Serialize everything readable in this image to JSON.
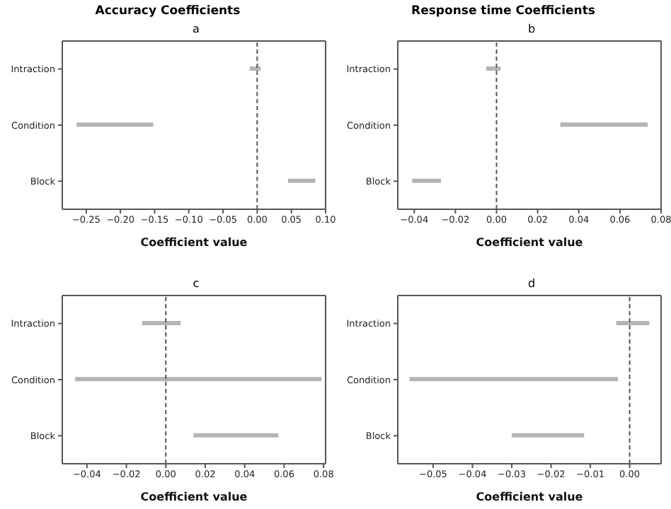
{
  "chart_data": [
    {
      "type": "bar",
      "orientation": "horizontal",
      "title": "Accuracy  Coefficients",
      "subtitle": "a",
      "xlabel": "Coefficient value",
      "categories": [
        "Intraction",
        "Condition",
        "Block"
      ],
      "base": [
        -0.011,
        -0.264,
        0.045
      ],
      "values": [
        0.016,
        0.112,
        0.04
      ],
      "color": "#b4b4b4",
      "xlim": [
        -0.285,
        0.1
      ],
      "xticks": [
        {
          "value": -0.25,
          "label": "−0.25"
        },
        {
          "value": -0.2,
          "label": "−0.20"
        },
        {
          "value": -0.15,
          "label": "−0.15"
        },
        {
          "value": -0.1,
          "label": "−0.10"
        },
        {
          "value": -0.05,
          "label": "−0.05"
        },
        {
          "value": 0,
          "label": "0.00"
        },
        {
          "value": 0.05,
          "label": "0.05"
        },
        {
          "value": 0.1,
          "label": "0.10"
        }
      ],
      "ref_lines": [
        {
          "axis": "x",
          "value": 0,
          "line_style": "dashed",
          "color": "#555555"
        }
      ],
      "grid": false,
      "legend": false
    },
    {
      "type": "bar",
      "orientation": "horizontal",
      "title": "Response time Coefficients",
      "subtitle": "b",
      "xlabel": "Coefficient value",
      "categories": [
        "Intraction",
        "Condition",
        "Block"
      ],
      "base": [
        -0.005,
        0.031,
        -0.041
      ],
      "values": [
        0.007,
        0.0425,
        0.014
      ],
      "color": "#b4b4b4",
      "xlim": [
        -0.048,
        0.08
      ],
      "xticks": [
        {
          "value": -0.04,
          "label": "−0.04"
        },
        {
          "value": -0.02,
          "label": "−0.02"
        },
        {
          "value": 0,
          "label": "0.00"
        },
        {
          "value": 0.02,
          "label": "0.02"
        },
        {
          "value": 0.04,
          "label": "0.04"
        },
        {
          "value": 0.06,
          "label": "0.06"
        },
        {
          "value": 0.08,
          "label": "0.08"
        }
      ],
      "ref_lines": [
        {
          "axis": "x",
          "value": 0,
          "line_style": "dashed",
          "color": "#555555"
        }
      ],
      "grid": false,
      "legend": false
    },
    {
      "type": "bar",
      "orientation": "horizontal",
      "subtitle": "c",
      "xlabel": "Coefficient value",
      "categories": [
        "Intraction",
        "Condition",
        "Block"
      ],
      "base": [
        -0.012,
        -0.046,
        0.014
      ],
      "values": [
        0.0195,
        0.125,
        0.043
      ],
      "color": "#b4b4b4",
      "xlim": [
        -0.0525,
        0.081
      ],
      "xticks": [
        {
          "value": -0.04,
          "label": "−0.04"
        },
        {
          "value": -0.02,
          "label": "−0.02"
        },
        {
          "value": 0,
          "label": "0.00"
        },
        {
          "value": 0.02,
          "label": "0.02"
        },
        {
          "value": 0.04,
          "label": "0.04"
        },
        {
          "value": 0.06,
          "label": "0.06"
        },
        {
          "value": 0.08,
          "label": "0.08"
        }
      ],
      "ref_lines": [
        {
          "axis": "x",
          "value": 0,
          "line_style": "dashed",
          "color": "#555555"
        }
      ],
      "grid": false,
      "legend": false
    },
    {
      "type": "bar",
      "orientation": "horizontal",
      "subtitle": "d",
      "xlabel": "Coefficient value",
      "categories": [
        "Intraction",
        "Condition",
        "Block"
      ],
      "base": [
        -0.0034,
        -0.056,
        -0.03
      ],
      "values": [
        0.0084,
        0.053,
        0.0184
      ],
      "color": "#b4b4b4",
      "xlim": [
        -0.059,
        0.008
      ],
      "xticks": [
        {
          "value": -0.05,
          "label": "−0.05"
        },
        {
          "value": -0.04,
          "label": "−0.04"
        },
        {
          "value": -0.03,
          "label": "−0.03"
        },
        {
          "value": -0.02,
          "label": "−0.02"
        },
        {
          "value": -0.01,
          "label": "−0.01"
        },
        {
          "value": 0,
          "label": "0.00"
        }
      ],
      "ref_lines": [
        {
          "axis": "x",
          "value": 0,
          "line_style": "dashed",
          "color": "#555555"
        }
      ],
      "grid": false,
      "legend": false
    }
  ]
}
